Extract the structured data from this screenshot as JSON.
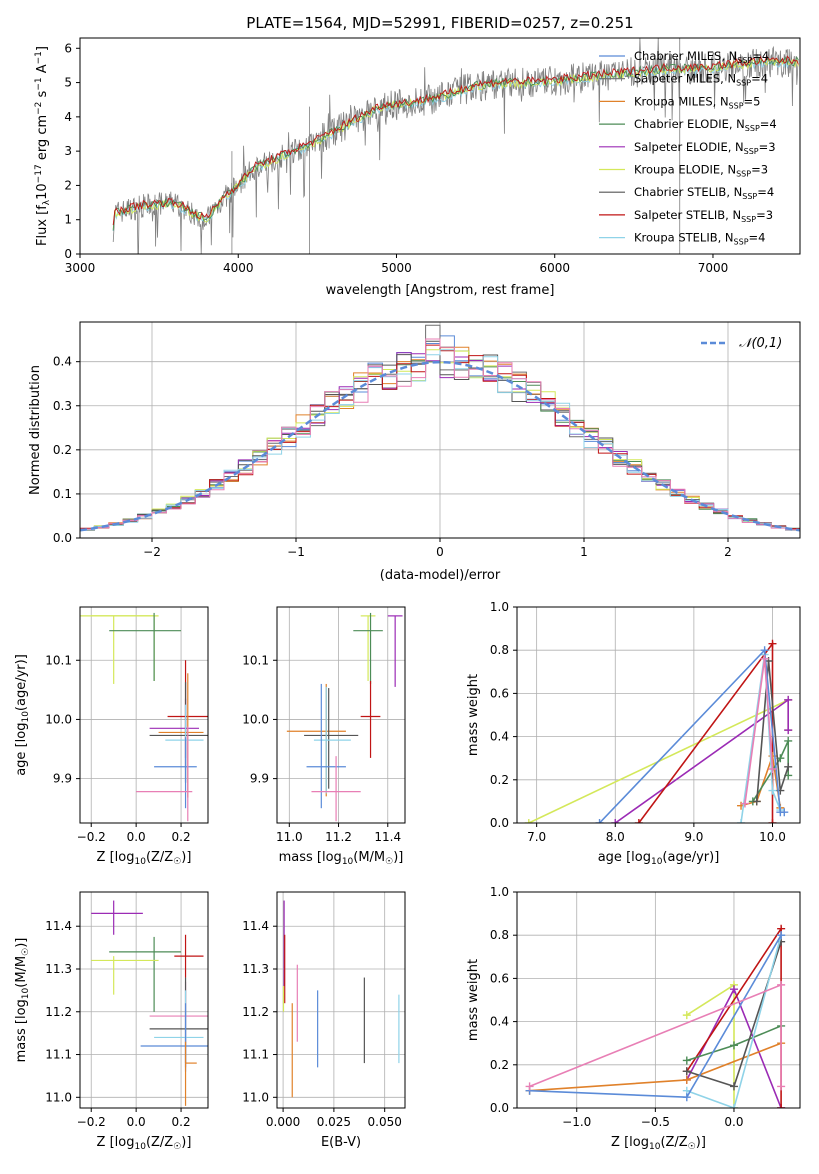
{
  "colors": {
    "chabrier_miles": "#5b8bd8",
    "salpeter_miles": "#6e6e6e",
    "kroupa_miles": "#e0812a",
    "chabrier_elodie": "#4d8c57",
    "salpeter_elodie": "#9b2bb5",
    "kroupa_elodie": "#d4e85a",
    "chabrier_stelib": "#555555",
    "salpeter_stelib": "#c01515",
    "kroupa_stelib": "#8fd3e8",
    "data_gray": "#808080",
    "pink": "#e87fb5",
    "normal_line": "#5b8bd8"
  },
  "chart_data": [
    {
      "type": "line",
      "title": "PLATE=1564, MJD=52991, FIBERID=0257, z=0.251",
      "xlabel": "wavelength [Angstrom, rest frame]",
      "ylabel_html": "Flux [f<sub>λ</sub>10<sup>−17</sup> erg cm<sup>−2</sup> s<sup>−1</sup> A<sup>−1</sup>]",
      "xlim": [
        3000,
        7550
      ],
      "ylim": [
        0,
        6.3
      ],
      "xticks": [
        "3000",
        "4000",
        "5000",
        "6000",
        "7000"
      ],
      "yticks": [
        "0",
        "1",
        "2",
        "3",
        "4",
        "5",
        "6"
      ],
      "legend_position": "top-right",
      "series": [
        {
          "name": "Chabrier MILES, N<sub>SSP</sub>=4",
          "color_key": "chabrier_miles"
        },
        {
          "name": "Salpeter MILES, N<sub>SSP</sub>=4",
          "color_key": "salpeter_miles"
        },
        {
          "name": "Kroupa MILES, N<sub>SSP</sub>=5",
          "color_key": "kroupa_miles"
        },
        {
          "name": "Chabrier ELODIE, N<sub>SSP</sub>=4",
          "color_key": "chabrier_elodie"
        },
        {
          "name": "Salpeter ELODIE, N<sub>SSP</sub>=3",
          "color_key": "salpeter_elodie"
        },
        {
          "name": "Kroupa ELODIE, N<sub>SSP</sub>=3",
          "color_key": "kroupa_elodie"
        },
        {
          "name": "Chabrier STELIB, N<sub>SSP</sub>=4",
          "color_key": "chabrier_stelib"
        },
        {
          "name": "Salpeter STELIB, N<sub>SSP</sub>=3",
          "color_key": "salpeter_stelib"
        },
        {
          "name": "Kroupa STELIB, N<sub>SSP</sub>=4",
          "color_key": "kroupa_stelib"
        }
      ],
      "model_continuum": {
        "x": [
          3200,
          3220,
          3400,
          3600,
          3700,
          3800,
          3900,
          4000,
          4100,
          4300,
          4500,
          4700,
          4900,
          5100,
          5300,
          5500,
          5700,
          5900,
          6100,
          6300,
          6500,
          6700,
          6900,
          7100,
          7300,
          7500
        ],
        "y": [
          0.2,
          1.2,
          1.4,
          1.5,
          1.2,
          1.0,
          1.6,
          2.0,
          2.5,
          2.9,
          3.3,
          3.8,
          4.3,
          4.4,
          4.6,
          4.9,
          5.0,
          5.0,
          5.1,
          5.2,
          5.3,
          5.4,
          5.4,
          5.5,
          5.6,
          5.6
        ]
      },
      "noise_seed": 7
    },
    {
      "type": "histogram",
      "xlabel": "(data-model)/error",
      "ylabel": "Normed distribution",
      "xlim": [
        -2.5,
        2.5
      ],
      "ylim": [
        0,
        0.49
      ],
      "xticks": [
        "−2",
        "−1",
        "0",
        "1",
        "2"
      ],
      "yticks": [
        "0.0",
        "0.1",
        "0.2",
        "0.3",
        "0.4"
      ],
      "bin_width": 0.1,
      "legend": "𝒩(0,1)",
      "legend_position": "top-right",
      "reference": {
        "name": "𝒩(0,1)",
        "mu": 0,
        "sigma": 1
      }
    },
    {
      "type": "errorbar",
      "panel": "age-Z",
      "xlabel": "Z [log<tspan font-size='9' dy='3'>10</tspan><tspan dy='-3'>(Z/Z</tspan><tspan font-size='9' dy='3'>☉</tspan><tspan dy='-3'>)]</tspan>",
      "ylabel": "age  [log<tspan font-size='9' dy='3'>10</tspan><tspan dy='-3'>(age/yr)]</tspan>",
      "xlim": [
        -0.25,
        0.32
      ],
      "ylim": [
        9.825,
        10.19
      ],
      "xticks": [
        -0.2,
        0.0,
        0.2
      ],
      "yticks": [
        9.9,
        10.0,
        10.1
      ],
      "points": [
        {
          "x": -0.1,
          "y": 10.175,
          "xerr": 0.2,
          "yerr": [
            0.115,
            0
          ],
          "c": "kroupa_elodie"
        },
        {
          "x": 0.08,
          "y": 10.175,
          "xerr": [
            0.28,
            0
          ],
          "yerr": [
            0.11,
            0
          ],
          "c": "kroupa_elodie"
        },
        {
          "x": 0.08,
          "y": 10.15,
          "xerr": [
            0.2,
            0.12
          ],
          "yerr": [
            0.085,
            0.03
          ],
          "c": "chabrier_elodie"
        },
        {
          "x": 0.22,
          "y": 10.005,
          "xerr": [
            0.08,
            0.1
          ],
          "yerr": [
            0.07,
            0.095
          ],
          "c": "salpeter_stelib"
        },
        {
          "x": 0.22,
          "y": 9.985,
          "xerr": [
            0.16,
            0.06
          ],
          "yerr": [
            0.07,
            0.05
          ],
          "c": "salpeter_elodie"
        },
        {
          "x": 0.23,
          "y": 9.978,
          "xerr": [
            0.13,
            0.07
          ],
          "yerr": [
            0.11,
            0.1
          ],
          "c": "kroupa_miles"
        },
        {
          "x": 0.22,
          "y": 9.973,
          "xerr": [
            0.16,
            0.1
          ],
          "yerr": [
            0.08,
            0.09
          ],
          "c": "chabrier_stelib"
        },
        {
          "x": 0.22,
          "y": 9.965,
          "xerr": [
            0.09,
            0.08
          ],
          "yerr": [
            0.07,
            0.06
          ],
          "c": "kroupa_stelib"
        },
        {
          "x": 0.22,
          "y": 9.92,
          "xerr": [
            0.14,
            0.05
          ],
          "yerr": [
            0.07,
            0.05
          ],
          "c": "chabrier_miles"
        },
        {
          "x": 0.23,
          "y": 9.878,
          "xerr": [
            0.23,
            0.02
          ],
          "yerr": [
            0.05,
            0.11
          ],
          "c": "pink"
        }
      ]
    },
    {
      "type": "errorbar",
      "panel": "age-mass",
      "xlabel": "mass [log<tspan font-size='9' dy='3'>10</tspan><tspan dy='-3'>(M/M</tspan><tspan font-size='9' dy='3'>☉</tspan><tspan dy='-3'>)]</tspan>",
      "xlim": [
        10.95,
        11.47
      ],
      "ylim": [
        9.825,
        10.19
      ],
      "xticks": [
        11.0,
        11.2,
        11.4
      ],
      "yticks": [
        9.9,
        10.0,
        10.1
      ],
      "points": [
        {
          "x": 11.32,
          "y": 10.175,
          "xerr": 0.03,
          "yerr": [
            0.11,
            0
          ],
          "c": "kroupa_elodie"
        },
        {
          "x": 11.43,
          "y": 10.175,
          "xerr": 0.03,
          "yerr": [
            0.12,
            0
          ],
          "c": "salpeter_elodie"
        },
        {
          "x": 11.33,
          "y": 10.15,
          "xerr": [
            0.07,
            0.05
          ],
          "yerr": [
            0.09,
            0.03
          ],
          "c": "chabrier_elodie"
        },
        {
          "x": 11.33,
          "y": 10.005,
          "xerr": 0.04,
          "yerr": [
            0.07,
            0.06
          ],
          "c": "salpeter_stelib"
        },
        {
          "x": 11.15,
          "y": 9.98,
          "xerr": [
            0.16,
            0.08
          ],
          "yerr": [
            0.11,
            0.08
          ],
          "c": "kroupa_miles"
        },
        {
          "x": 11.16,
          "y": 9.973,
          "xerr": [
            0.1,
            0.12
          ],
          "yerr": [
            0.09,
            0.08
          ],
          "c": "chabrier_stelib"
        },
        {
          "x": 11.15,
          "y": 9.965,
          "xerr": [
            0.05,
            0.1
          ],
          "yerr": [
            0.09,
            0.09
          ],
          "c": "kroupa_stelib"
        },
        {
          "x": 11.13,
          "y": 9.92,
          "xerr": [
            0.06,
            0.1
          ],
          "yerr": [
            0.07,
            0.14
          ],
          "c": "chabrier_miles"
        },
        {
          "x": 11.19,
          "y": 9.878,
          "xerr": 0.1,
          "yerr": [
            0.05,
            0.06
          ],
          "c": "pink"
        }
      ]
    },
    {
      "type": "line",
      "panel": "weight-age",
      "xlabel": "age  [log<tspan font-size='9' dy='3'>10</tspan><tspan dy='-3'>(age/yr)]</tspan>",
      "ylabel": "mass weight",
      "xlim": [
        6.75,
        10.35
      ],
      "ylim": [
        0,
        1
      ],
      "xticks": [
        7,
        8,
        9,
        10
      ],
      "yticks": [
        0.0,
        0.2,
        0.4,
        0.6,
        0.8,
        1.0
      ],
      "series": [
        {
          "c": "kroupa_elodie",
          "x": [
            6.9,
            10.2,
            10.2
          ],
          "y": [
            0.0,
            0.57,
            0.43
          ]
        },
        {
          "c": "salpeter_elodie",
          "x": [
            8.0,
            10.2,
            10.2
          ],
          "y": [
            0.0,
            0.57,
            0.43
          ]
        },
        {
          "c": "salpeter_stelib",
          "x": [
            8.3,
            10.0,
            10.0
          ],
          "y": [
            0.0,
            0.83,
            0.0
          ]
        },
        {
          "c": "kroupa_miles",
          "x": [
            9.6,
            9.8,
            10.0,
            10.1
          ],
          "y": [
            0.08,
            0.1,
            0.31,
            0.07
          ]
        },
        {
          "c": "chabrier_elodie",
          "x": [
            9.75,
            10.1,
            10.2,
            10.2
          ],
          "y": [
            0.1,
            0.3,
            0.38,
            0.22
          ]
        },
        {
          "c": "chabrier_stelib",
          "x": [
            9.8,
            9.95,
            10.1,
            10.2
          ],
          "y": [
            0.1,
            0.75,
            0.15,
            0.26
          ]
        },
        {
          "c": "kroupa_stelib",
          "x": [
            9.6,
            9.9,
            10.0,
            10.1
          ],
          "y": [
            0.0,
            0.78,
            0.15,
            0.06
          ]
        },
        {
          "c": "chabrier_miles",
          "x": [
            7.8,
            9.9,
            10.1,
            10.15
          ],
          "y": [
            0.0,
            0.8,
            0.05,
            0.05
          ]
        },
        {
          "c": "pink",
          "x": [
            9.65,
            9.9,
            10.0
          ],
          "y": [
            0.09,
            0.76,
            0.25
          ]
        }
      ]
    },
    {
      "type": "errorbar",
      "panel": "mass-Z",
      "xlabel": "Z [log<tspan font-size='9' dy='3'>10</tspan><tspan dy='-3'>(Z/Z</tspan><tspan font-size='9' dy='3'>☉</tspan><tspan dy='-3'>)]</tspan>",
      "ylabel": "mass [log<tspan font-size='9' dy='3'>10</tspan><tspan dy='-3'>(M/M</tspan><tspan font-size='9' dy='3'>☉</tspan><tspan dy='-3'>)]</tspan>",
      "xlim": [
        -0.25,
        0.32
      ],
      "ylim": [
        10.975,
        11.48
      ],
      "xticks": [
        -0.2,
        0.0,
        0.2
      ],
      "yticks": [
        11.0,
        11.1,
        11.2,
        11.3,
        11.4
      ],
      "points": [
        {
          "x": -0.1,
          "y": 11.43,
          "xerr": [
            0.1,
            0.13
          ],
          "yerr": [
            0.05,
            0.03
          ],
          "c": "salpeter_elodie"
        },
        {
          "x": 0.08,
          "y": 11.34,
          "xerr": [
            0.2,
            0.12
          ],
          "yerr": [
            0.14,
            0.035
          ],
          "c": "chabrier_elodie"
        },
        {
          "x": 0.22,
          "y": 11.33,
          "xerr": [
            0.05,
            0.08
          ],
          "yerr": [
            0.05,
            0.05
          ],
          "c": "salpeter_stelib"
        },
        {
          "x": -0.1,
          "y": 11.32,
          "xerr": [
            0.1,
            0.2
          ],
          "yerr": [
            0.08,
            0.01
          ],
          "c": "kroupa_elodie"
        },
        {
          "x": 0.22,
          "y": 11.19,
          "xerr": [
            0.16,
            0.1
          ],
          "yerr": [
            0.12,
            0.08
          ],
          "c": "pink"
        },
        {
          "x": 0.22,
          "y": 11.16,
          "xerr": [
            0.16,
            0.1
          ],
          "yerr": [
            0.08,
            0.12
          ],
          "c": "chabrier_stelib"
        },
        {
          "x": 0.22,
          "y": 11.14,
          "xerr": [
            0.14,
            0.08
          ],
          "yerr": [
            0.07,
            0.11
          ],
          "c": "kroupa_stelib"
        },
        {
          "x": 0.22,
          "y": 11.12,
          "xerr": [
            0.2,
            0.1
          ],
          "yerr": [
            0.06,
            0.1
          ],
          "c": "chabrier_miles"
        },
        {
          "x": 0.22,
          "y": 11.08,
          "xerr": [
            0.0,
            0.05
          ],
          "yerr": [
            0.1,
            0.05
          ],
          "c": "kroupa_miles"
        }
      ]
    },
    {
      "type": "errorbar",
      "panel": "mass-EBV",
      "xlabel": "E(B-V)",
      "xlim": [
        -0.003,
        0.06
      ],
      "ylim": [
        10.975,
        11.48
      ],
      "xticks": [
        0.0,
        0.025,
        0.05
      ],
      "xticklabels": [
        "0.000",
        "0.025",
        "0.050"
      ],
      "yticks": [
        11.0,
        11.1,
        11.2,
        11.3,
        11.4
      ],
      "points": [
        {
          "x": 0.0005,
          "y": 11.36,
          "xerr": 0,
          "yerr": [
            0.1,
            0.1
          ],
          "c": "salpeter_elodie"
        },
        {
          "x": 0.0008,
          "y": 11.3,
          "xerr": 0,
          "yerr": [
            0.08,
            0.08
          ],
          "c": "salpeter_stelib"
        },
        {
          "x": 0.0002,
          "y": 11.23,
          "xerr": 0,
          "yerr": [
            0.03,
            0.03
          ],
          "c": "kroupa_elodie"
        },
        {
          "x": 0.0045,
          "y": 11.11,
          "xerr": 0,
          "yerr": [
            0.11,
            0.11
          ],
          "c": "kroupa_miles"
        },
        {
          "x": 0.007,
          "y": 11.22,
          "xerr": 0,
          "yerr": [
            0.09,
            0.09
          ],
          "c": "pink"
        },
        {
          "x": 0.017,
          "y": 11.16,
          "xerr": 0,
          "yerr": [
            0.09,
            0.09
          ],
          "c": "chabrier_miles"
        },
        {
          "x": 0.04,
          "y": 11.18,
          "xerr": 0,
          "yerr": [
            0.1,
            0.1
          ],
          "c": "chabrier_stelib"
        },
        {
          "x": 0.057,
          "y": 11.16,
          "xerr": 0,
          "yerr": [
            0.08,
            0.08
          ],
          "c": "kroupa_stelib"
        }
      ]
    },
    {
      "type": "line",
      "panel": "weight-Z",
      "xlabel": "Z [log<tspan font-size='9' dy='3'>10</tspan><tspan dy='-3'>(Z/Z</tspan><tspan font-size='9' dy='3'>☉</tspan><tspan dy='-3'>)]</tspan>",
      "ylabel": "mass weight",
      "xlim": [
        -1.38,
        0.42
      ],
      "ylim": [
        0,
        1
      ],
      "xticks": [
        -1.0,
        -0.5,
        0.0
      ],
      "xticklabels": [
        "−1.0",
        "−0.5",
        "0.0"
      ],
      "yticks": [
        0.0,
        0.2,
        0.4,
        0.6,
        0.8,
        1.0
      ],
      "series": [
        {
          "c": "kroupa_elodie",
          "x": [
            -0.3,
            0.0,
            0.0
          ],
          "y": [
            0.43,
            0.57,
            0.0
          ]
        },
        {
          "c": "salpeter_elodie",
          "x": [
            -0.3,
            0.0,
            0.3
          ],
          "y": [
            0.13,
            0.55,
            0.0
          ]
        },
        {
          "c": "salpeter_stelib",
          "x": [
            -0.3,
            0.3,
            0.3
          ],
          "y": [
            0.17,
            0.83,
            0.0
          ]
        },
        {
          "c": "kroupa_miles",
          "x": [
            -1.3,
            -0.3,
            0.3
          ],
          "y": [
            0.08,
            0.13,
            0.3
          ]
        },
        {
          "c": "chabrier_elodie",
          "x": [
            -0.3,
            0.0,
            0.3
          ],
          "y": [
            0.22,
            0.29,
            0.38
          ]
        },
        {
          "c": "chabrier_stelib",
          "x": [
            -0.3,
            0.0,
            0.3
          ],
          "y": [
            0.17,
            0.1,
            0.77
          ]
        },
        {
          "c": "kroupa_stelib",
          "x": [
            -0.3,
            0.0,
            0.3
          ],
          "y": [
            0.08,
            0.0,
            0.8
          ]
        },
        {
          "c": "chabrier_miles",
          "x": [
            -1.3,
            -0.3,
            0.3
          ],
          "y": [
            0.08,
            0.05,
            0.8
          ]
        },
        {
          "c": "pink",
          "x": [
            -1.3,
            0.3,
            0.3
          ],
          "y": [
            0.1,
            0.57,
            0.1
          ]
        }
      ]
    }
  ]
}
